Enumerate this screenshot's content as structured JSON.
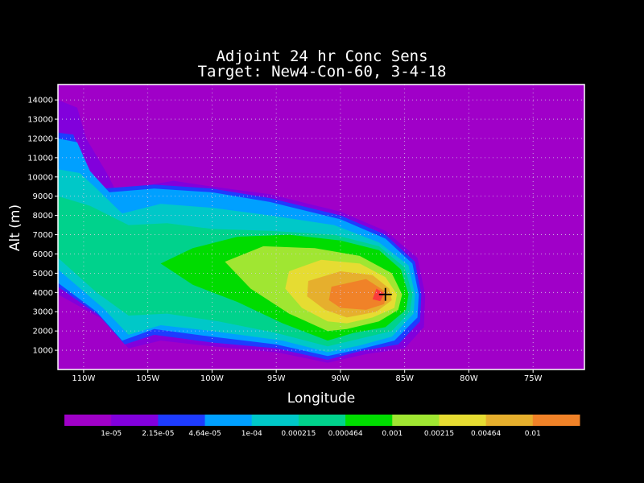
{
  "colors": {
    "background": "#000000",
    "frame": "#ffffff",
    "grid": "#d8c8e8",
    "levels": [
      "#a000c8",
      "#8200dc",
      "#1e3cff",
      "#00a0ff",
      "#00c8c8",
      "#00d28c",
      "#00dc00",
      "#a0e632",
      "#e6dc32",
      "#e6af2d",
      "#f08228",
      "#fa3c3c",
      "#f00082"
    ]
  },
  "chart_data": {
    "type": "contour",
    "title": "Adjoint 24 hr Conc Sens",
    "subtitle": "Target: New4-Con-60, 3-4-18",
    "xlabel": "Longitude",
    "ylabel": "Alt (m)",
    "xlim": [
      -112,
      -71
    ],
    "ylim": [
      0,
      14800
    ],
    "grid": true,
    "x_ticks": [
      {
        "value": -110,
        "label": "110W"
      },
      {
        "value": -105,
        "label": "105W"
      },
      {
        "value": -100,
        "label": "100W"
      },
      {
        "value": -95,
        "label": "95W"
      },
      {
        "value": -90,
        "label": "90W"
      },
      {
        "value": -85,
        "label": "85W"
      },
      {
        "value": -80,
        "label": "80W"
      },
      {
        "value": -75,
        "label": "75W"
      }
    ],
    "y_ticks": [
      {
        "value": 1000,
        "label": "1000"
      },
      {
        "value": 2000,
        "label": "2000"
      },
      {
        "value": 3000,
        "label": "3000"
      },
      {
        "value": 4000,
        "label": "4000"
      },
      {
        "value": 5000,
        "label": "5000"
      },
      {
        "value": 6000,
        "label": "6000"
      },
      {
        "value": 7000,
        "label": "7000"
      },
      {
        "value": 8000,
        "label": "8000"
      },
      {
        "value": 9000,
        "label": "9000"
      },
      {
        "value": 10000,
        "label": "10000"
      },
      {
        "value": 11000,
        "label": "11000"
      },
      {
        "value": 12000,
        "label": "12000"
      },
      {
        "value": 13000,
        "label": "13000"
      },
      {
        "value": 14000,
        "label": "14000"
      }
    ],
    "contour_levels": [
      "1e-05",
      "2.15e-05",
      "4.64e-05",
      "1e-04",
      "0.000215",
      "0.000464",
      "0.001",
      "0.00215",
      "0.00464",
      "0.01"
    ],
    "target_marker": {
      "lon": -86.5,
      "alt": 3900
    },
    "regions": [
      {
        "level": 1,
        "points": [
          [
            -112,
            14000
          ],
          [
            -110.5,
            13600
          ],
          [
            -109.8,
            12000
          ],
          [
            -108.2,
            10200
          ],
          [
            -107.5,
            9300
          ],
          [
            -103,
            9800
          ],
          [
            -100,
            9500
          ],
          [
            -95.5,
            9100
          ],
          [
            -90,
            8200
          ],
          [
            -86.5,
            7200
          ],
          [
            -84,
            5800
          ],
          [
            -83.4,
            3900
          ],
          [
            -83.5,
            2200
          ],
          [
            -85,
            1100
          ],
          [
            -88,
            800
          ],
          [
            -91,
            350
          ],
          [
            -95,
            900
          ],
          [
            -100,
            1200
          ],
          [
            -104,
            1500
          ],
          [
            -106.5,
            1100
          ],
          [
            -108.5,
            2600
          ],
          [
            -112,
            3900
          ]
        ]
      },
      {
        "level": 2,
        "points": [
          [
            -112,
            12300
          ],
          [
            -110.8,
            12200
          ],
          [
            -109.8,
            10500
          ],
          [
            -108.5,
            9400
          ],
          [
            -104.5,
            9600
          ],
          [
            -100,
            9400
          ],
          [
            -95.5,
            8900
          ],
          [
            -90,
            8000
          ],
          [
            -86.5,
            7000
          ],
          [
            -84.2,
            5600
          ],
          [
            -83.7,
            3900
          ],
          [
            -83.8,
            2500
          ],
          [
            -85.5,
            1300
          ],
          [
            -88.5,
            950
          ],
          [
            -91,
            500
          ],
          [
            -95,
            1100
          ],
          [
            -100,
            1400
          ],
          [
            -104.5,
            1800
          ],
          [
            -106.8,
            1300
          ],
          [
            -108.8,
            2800
          ],
          [
            -112,
            4300
          ]
        ]
      },
      {
        "level": 3,
        "points": [
          [
            -112,
            12000
          ],
          [
            -110.5,
            11800
          ],
          [
            -109.5,
            10300
          ],
          [
            -108,
            9200
          ],
          [
            -104.5,
            9400
          ],
          [
            -100,
            9200
          ],
          [
            -95.5,
            8700
          ],
          [
            -90,
            7800
          ],
          [
            -86.5,
            6800
          ],
          [
            -84.4,
            5500
          ],
          [
            -83.9,
            3900
          ],
          [
            -84,
            2700
          ],
          [
            -85.8,
            1500
          ],
          [
            -88.5,
            1050
          ],
          [
            -91,
            700
          ],
          [
            -95,
            1300
          ],
          [
            -100,
            1700
          ],
          [
            -104.5,
            2100
          ],
          [
            -107,
            1500
          ],
          [
            -109,
            3000
          ],
          [
            -112,
            4500
          ]
        ]
      },
      {
        "level": 4,
        "points": [
          [
            -112,
            10400
          ],
          [
            -110.3,
            10200
          ],
          [
            -109,
            9400
          ],
          [
            -107,
            8100
          ],
          [
            -104,
            8600
          ],
          [
            -100,
            8400
          ],
          [
            -95.5,
            8000
          ],
          [
            -90.5,
            7500
          ],
          [
            -87,
            6600
          ],
          [
            -84.7,
            5400
          ],
          [
            -84.2,
            3900
          ],
          [
            -84.3,
            2900
          ],
          [
            -86,
            1700
          ],
          [
            -88.5,
            1250
          ],
          [
            -91,
            900
          ],
          [
            -94.5,
            1500
          ],
          [
            -100,
            2000
          ],
          [
            -104,
            2300
          ],
          [
            -106.5,
            1800
          ],
          [
            -108.5,
            3200
          ],
          [
            -112,
            5200
          ]
        ]
      },
      {
        "level": 5,
        "points": [
          [
            -112,
            9000
          ],
          [
            -109.5,
            8500
          ],
          [
            -106.5,
            7500
          ],
          [
            -103.5,
            7600
          ],
          [
            -100,
            7300
          ],
          [
            -95.5,
            7200
          ],
          [
            -90.5,
            7000
          ],
          [
            -87,
            6400
          ],
          [
            -85,
            5300
          ],
          [
            -84.4,
            3900
          ],
          [
            -84.6,
            3000
          ],
          [
            -86,
            2000
          ],
          [
            -88.5,
            1600
          ],
          [
            -91,
            1200
          ],
          [
            -95,
            1900
          ],
          [
            -99.5,
            2500
          ],
          [
            -103.5,
            2900
          ],
          [
            -106.5,
            2800
          ],
          [
            -109,
            4000
          ],
          [
            -112,
            5800
          ]
        ]
      },
      {
        "level": 6,
        "points": [
          [
            -104,
            5500
          ],
          [
            -101.5,
            6300
          ],
          [
            -98,
            6900
          ],
          [
            -94,
            7000
          ],
          [
            -90,
            6700
          ],
          [
            -87,
            6200
          ],
          [
            -85.3,
            5200
          ],
          [
            -84.7,
            3900
          ],
          [
            -84.9,
            3100
          ],
          [
            -86.5,
            2200
          ],
          [
            -89,
            1900
          ],
          [
            -91,
            1500
          ],
          [
            -94.5,
            2400
          ],
          [
            -98,
            3500
          ],
          [
            -101.5,
            4400
          ]
        ]
      },
      {
        "level": 7,
        "points": [
          [
            -99,
            5600
          ],
          [
            -96,
            6400
          ],
          [
            -92,
            6300
          ],
          [
            -88.5,
            5900
          ],
          [
            -86,
            5000
          ],
          [
            -85.2,
            3900
          ],
          [
            -85.5,
            3100
          ],
          [
            -87,
            2500
          ],
          [
            -89.5,
            2100
          ],
          [
            -91,
            2000
          ],
          [
            -94,
            2900
          ],
          [
            -97,
            4200
          ]
        ]
      },
      {
        "level": 8,
        "points": [
          [
            -94,
            5100
          ],
          [
            -91.5,
            5700
          ],
          [
            -88.5,
            5500
          ],
          [
            -86.5,
            4800
          ],
          [
            -85.6,
            3900
          ],
          [
            -85.8,
            3200
          ],
          [
            -87.5,
            2700
          ],
          [
            -89.5,
            2400
          ],
          [
            -91,
            2500
          ],
          [
            -93,
            3200
          ],
          [
            -94.3,
            4200
          ]
        ]
      },
      {
        "level": 9,
        "points": [
          [
            -92.5,
            4600
          ],
          [
            -90,
            5100
          ],
          [
            -87.5,
            4900
          ],
          [
            -86.2,
            4200
          ],
          [
            -86,
            3600
          ],
          [
            -87.2,
            3000
          ],
          [
            -89.5,
            2700
          ],
          [
            -91.2,
            3100
          ],
          [
            -92.6,
            3800
          ]
        ]
      },
      {
        "level": 10,
        "points": [
          [
            -90.7,
            4300
          ],
          [
            -88,
            4700
          ],
          [
            -86.4,
            4000
          ],
          [
            -86.6,
            3400
          ],
          [
            -88,
            3100
          ],
          [
            -90,
            3200
          ],
          [
            -90.9,
            3600
          ]
        ]
      },
      {
        "level": 11,
        "points": [
          [
            -87.2,
            4200
          ],
          [
            -86.6,
            3950
          ],
          [
            -86.9,
            3550
          ],
          [
            -87.5,
            3650
          ]
        ]
      }
    ]
  }
}
